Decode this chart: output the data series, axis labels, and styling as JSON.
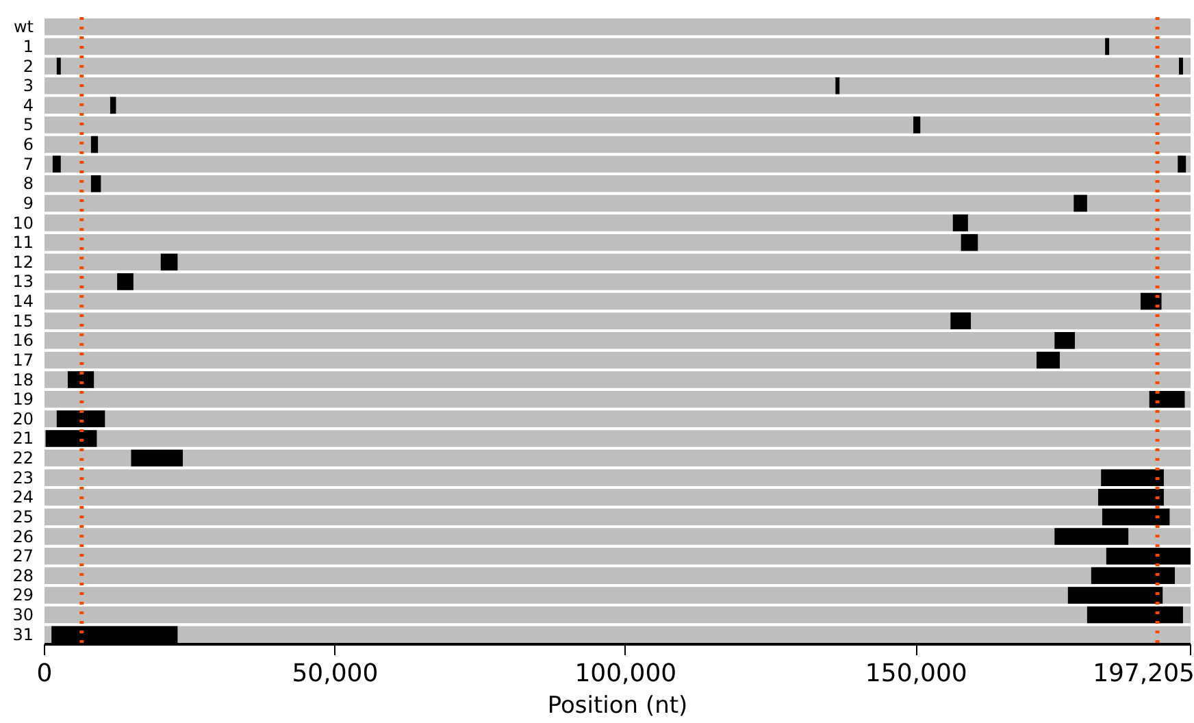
{
  "chart_data": {
    "type": "bar",
    "orientation": "horizontal",
    "xlabel": "Position (nt)",
    "categories": [
      "wt",
      "1",
      "2",
      "3",
      "4",
      "5",
      "6",
      "7",
      "8",
      "9",
      "10",
      "11",
      "12",
      "13",
      "14",
      "15",
      "16",
      "17",
      "18",
      "19",
      "20",
      "21",
      "22",
      "23",
      "24",
      "25",
      "26",
      "27",
      "28",
      "29",
      "30",
      "31"
    ],
    "series": [
      {
        "color": "#bebebe",
        "base": [
          0,
          0,
          0,
          0,
          0,
          0,
          0,
          0,
          0,
          0,
          0,
          0,
          0,
          0,
          0,
          0,
          0,
          0,
          0,
          0,
          0,
          0,
          0,
          0,
          0,
          0,
          0,
          0,
          0,
          0,
          0,
          0
        ],
        "values": [
          197205,
          197205,
          197205,
          197205,
          197205,
          197205,
          197205,
          197205,
          197205,
          197205,
          197205,
          197205,
          197205,
          197205,
          197205,
          197205,
          197205,
          197205,
          197205,
          197205,
          197205,
          197205,
          197205,
          197205,
          197205,
          197205,
          197205,
          197205,
          197205,
          197205,
          197205,
          197205
        ]
      },
      {
        "color": "#000000",
        "base": [
          null,
          182500,
          2100,
          136100,
          11300,
          149500,
          8000,
          1400,
          8000,
          177100,
          156300,
          157700,
          20000,
          12500,
          188600,
          155900,
          173800,
          170700,
          4000,
          190100,
          2100,
          200,
          14900,
          181800,
          181300,
          182000,
          173800,
          182700,
          180100,
          176100,
          179400,
          1200
        ],
        "values": [
          null,
          700,
          700,
          700,
          1000,
          1200,
          1200,
          1400,
          1700,
          2300,
          2600,
          2900,
          2900,
          2800,
          3600,
          3500,
          3500,
          4000,
          4500,
          6100,
          8300,
          8800,
          8900,
          10800,
          11300,
          11600,
          12700,
          14500,
          14400,
          16300,
          16500,
          21700
        ]
      },
      {
        "color": "#000000",
        "base": [
          null,
          null,
          195200,
          null,
          null,
          null,
          null,
          195000,
          null,
          null,
          null,
          null,
          null,
          null,
          null,
          null,
          null,
          null,
          null,
          null,
          null,
          null,
          null,
          null,
          null,
          null,
          null,
          null,
          null,
          null,
          null,
          null
        ],
        "values": [
          null,
          null,
          700,
          null,
          null,
          null,
          null,
          1400,
          null,
          null,
          null,
          null,
          null,
          null,
          null,
          null,
          null,
          null,
          null,
          null,
          null,
          null,
          null,
          null,
          null,
          null,
          null,
          null,
          null,
          null,
          null,
          null
        ]
      }
    ],
    "xlim": [
      0,
      197205
    ],
    "xticks": [
      0,
      {
        "value": 50000,
        "label": "50,000"
      },
      {
        "value": 100000,
        "label": "100,000"
      },
      {
        "value": 150000,
        "label": "150,000"
      },
      {
        "value": 197205,
        "label": "197,205"
      }
    ],
    "ref_lines": [
      {
        "axis": "x",
        "value": 6400,
        "color": "#ff4500",
        "line_style": "dotted"
      },
      {
        "axis": "x",
        "value": 191500,
        "color": "#ff4500",
        "line_style": "dotted"
      }
    ],
    "grid": false
  }
}
